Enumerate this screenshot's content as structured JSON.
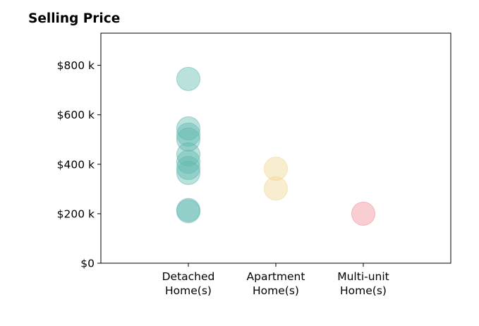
{
  "chart_data": {
    "type": "scatter",
    "title": "Selling Price",
    "xlabel": "",
    "ylabel": "",
    "categories": [
      "Detached\nHome(s)",
      "Apartment\nHome(s)",
      "Multi-unit\nHome(s)"
    ],
    "ylim": [
      0,
      930000
    ],
    "y_ticks": [
      0,
      200000,
      400000,
      600000,
      800000
    ],
    "y_tick_labels": [
      "$0",
      "$200 k",
      "$400 k",
      "$600 k",
      "$800 k"
    ],
    "grid": false,
    "legend": "none",
    "series": [
      {
        "category_index": 0,
        "color": "#5cb8ad",
        "values": [
          745000,
          545000,
          520000,
          500000,
          440000,
          410000,
          385000,
          365000,
          215000,
          210000
        ]
      },
      {
        "category_index": 1,
        "color": "#f0d48f",
        "values": [
          382000,
          302000
        ]
      },
      {
        "category_index": 2,
        "color": "#ef8a93",
        "values": [
          200000
        ]
      }
    ]
  }
}
